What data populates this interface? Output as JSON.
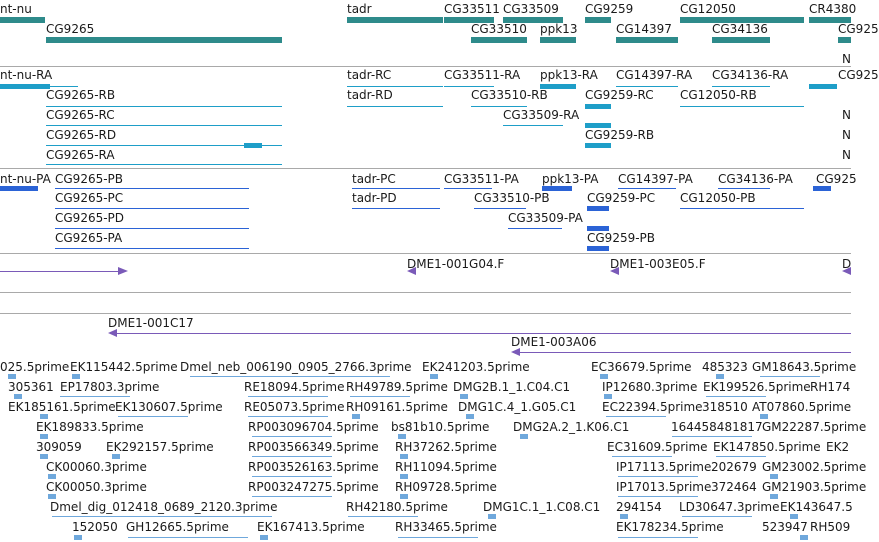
{
  "colors": {
    "gene": "#2e8b8b",
    "transcript_rna": "#1e9ec8",
    "protein": "#2b63d6",
    "primer": "#7a5ab8",
    "est": "#6fa8dc",
    "separator": "#a9a9a9"
  },
  "tracks": {
    "gene": {
      "labels": [
        {
          "text": "nt-nu"
        },
        {
          "text": "CG9265"
        },
        {
          "text": "tadr"
        },
        {
          "text": "CG33511"
        },
        {
          "text": "CG33509"
        },
        {
          "text": "CG9259"
        },
        {
          "text": "CG12050"
        },
        {
          "text": "CR4380"
        },
        {
          "text": "CG33510"
        },
        {
          "text": "ppk13"
        },
        {
          "text": "CG14397"
        },
        {
          "text": "CG34136"
        },
        {
          "text": "CG925"
        },
        {
          "text": "N"
        }
      ]
    },
    "transcripts": {
      "labels": [
        {
          "text": "nt-nu-RA"
        },
        {
          "text": "CG9265-RB"
        },
        {
          "text": "CG9265-RC"
        },
        {
          "text": "CG9265-RD"
        },
        {
          "text": "CG9265-RA"
        },
        {
          "text": "tadr-RC"
        },
        {
          "text": "tadr-RD"
        },
        {
          "text": "CG33511-RA"
        },
        {
          "text": "CG33510-RB"
        },
        {
          "text": "CG33509-RA"
        },
        {
          "text": "ppk13-RA"
        },
        {
          "text": "CG9259-RC"
        },
        {
          "text": "CG9259-RB"
        },
        {
          "text": "CG14397-RA"
        },
        {
          "text": "CG12050-RB"
        },
        {
          "text": "CG34136-RA"
        },
        {
          "text": "CG925"
        },
        {
          "text": "N"
        },
        {
          "text": "N"
        },
        {
          "text": "N"
        }
      ]
    },
    "proteins": {
      "labels": [
        {
          "text": "nt-nu-PA"
        },
        {
          "text": "CG9265-PB"
        },
        {
          "text": "CG9265-PC"
        },
        {
          "text": "CG9265-PD"
        },
        {
          "text": "CG9265-PA"
        },
        {
          "text": "tadr-PC"
        },
        {
          "text": "tadr-PD"
        },
        {
          "text": "CG33511-PA"
        },
        {
          "text": "CG33510-PB"
        },
        {
          "text": "CG33509-PA"
        },
        {
          "text": "ppk13-PA"
        },
        {
          "text": "CG9259-PC"
        },
        {
          "text": "CG9259-PB"
        },
        {
          "text": "CG14397-PA"
        },
        {
          "text": "CG12050-PB"
        },
        {
          "text": "CG34136-PA"
        },
        {
          "text": "CG925"
        }
      ]
    },
    "primers": {
      "labels": [
        {
          "text": "DME1-001G04.F"
        },
        {
          "text": "DME1-003E05.F"
        },
        {
          "text": "D"
        },
        {
          "text": "DME1-001C17"
        },
        {
          "text": "DME1-003A06"
        }
      ]
    },
    "ests": {
      "labels": [
        {
          "text": "025.5prime"
        },
        {
          "text": "EK115442.5prime"
        },
        {
          "text": "Dmel_neb_006190_0905_2766.3prime"
        },
        {
          "text": "EK241203.5prime"
        },
        {
          "text": "EC36679.5prime"
        },
        {
          "text": "485323"
        },
        {
          "text": "GM18643.5prime"
        },
        {
          "text": "305361"
        },
        {
          "text": "EP17803.3prime"
        },
        {
          "text": "RE18094.5prime"
        },
        {
          "text": "RH49789.5prime"
        },
        {
          "text": "DMG2B.1_1.C04.C1"
        },
        {
          "text": "IP12680.3prime"
        },
        {
          "text": "EK199526.5prime"
        },
        {
          "text": "RH174"
        },
        {
          "text": "EK185161.5prime"
        },
        {
          "text": "EK130607.5prime"
        },
        {
          "text": "RE05073.5prime"
        },
        {
          "text": "RH09161.5prime"
        },
        {
          "text": "DMG1C.4_1.G05.C1"
        },
        {
          "text": "EC22394.5prime"
        },
        {
          "text": "318510"
        },
        {
          "text": "AT07860.5prime"
        },
        {
          "text": "EK189833.5prime"
        },
        {
          "text": "RP003096704.5prime"
        },
        {
          "text": "bs81b10.5prime"
        },
        {
          "text": "DMG2A.2_1.K06.C1"
        },
        {
          "text": "164458481817"
        },
        {
          "text": "GM22287.5prime"
        },
        {
          "text": "309059"
        },
        {
          "text": "EK292157.5prime"
        },
        {
          "text": "RP003566349.5prime"
        },
        {
          "text": "RH37262.5prime"
        },
        {
          "text": "EC31609.5prime"
        },
        {
          "text": "EK147850.5prime"
        },
        {
          "text": "EK2"
        },
        {
          "text": "CK00060.3prime"
        },
        {
          "text": "RP003526163.5prime"
        },
        {
          "text": "RH11094.5prime"
        },
        {
          "text": "IP17113.5prime"
        },
        {
          "text": "202679"
        },
        {
          "text": "GM23002.5prime"
        },
        {
          "text": "CK00050.3prime"
        },
        {
          "text": "RP003247275.5prime"
        },
        {
          "text": "RH09728.5prime"
        },
        {
          "text": "IP17013.5prime"
        },
        {
          "text": "372464"
        },
        {
          "text": "GM21903.5prime"
        },
        {
          "text": "Dmel_dig_012418_0689_2120.3prime"
        },
        {
          "text": "RH42180.5prime"
        },
        {
          "text": "DMG1C.1_1.C08.C1"
        },
        {
          "text": "294154"
        },
        {
          "text": "LD30647.3prime"
        },
        {
          "text": "EK143647.5"
        },
        {
          "text": "152050"
        },
        {
          "text": "GH12665.5prime"
        },
        {
          "text": "EK167413.5prime"
        },
        {
          "text": "RH33465.5prime"
        },
        {
          "text": "EK178234.5prime"
        },
        {
          "text": "523947"
        },
        {
          "text": "RH509"
        }
      ]
    }
  }
}
